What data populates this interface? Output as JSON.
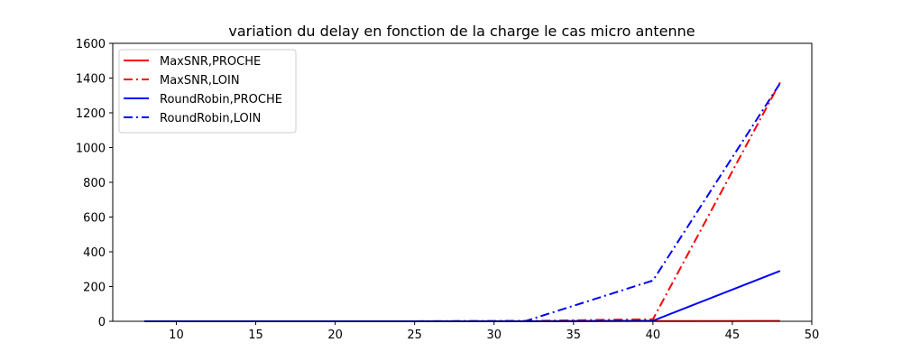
{
  "chart_data": {
    "type": "line",
    "title": "variation du delay en fonction de la charge le cas micro antenne",
    "xlabel": "",
    "ylabel": "",
    "xlim": [
      6,
      50
    ],
    "ylim": [
      0,
      1600
    ],
    "xticks": [
      10,
      15,
      20,
      25,
      30,
      35,
      40,
      45,
      50
    ],
    "yticks": [
      0,
      200,
      400,
      600,
      800,
      1000,
      1200,
      1400,
      1600
    ],
    "grid": false,
    "legend": "top-left",
    "series": [
      {
        "name": "MaxSNR,PROCHE",
        "color": "#ff0000",
        "style": "solid",
        "x": [
          8,
          16,
          24,
          32,
          40,
          48
        ],
        "y": [
          0,
          0,
          0,
          0,
          1,
          2
        ]
      },
      {
        "name": "MaxSNR,LOIN",
        "color": "#ff0000",
        "style": "dashdot",
        "x": [
          8,
          16,
          24,
          32,
          40,
          48
        ],
        "y": [
          0,
          0,
          0,
          2,
          12,
          1375
        ]
      },
      {
        "name": "RoundRobin,PROCHE",
        "color": "#0000ff",
        "style": "solid",
        "x": [
          8,
          16,
          24,
          32,
          40,
          48
        ],
        "y": [
          0,
          0,
          0,
          0,
          3,
          290
        ]
      },
      {
        "name": "RoundRobin,LOIN",
        "color": "#0000ff",
        "style": "dashdot",
        "x": [
          8,
          16,
          24,
          32,
          40,
          48
        ],
        "y": [
          0,
          0,
          0,
          2,
          235,
          1370
        ]
      }
    ]
  }
}
